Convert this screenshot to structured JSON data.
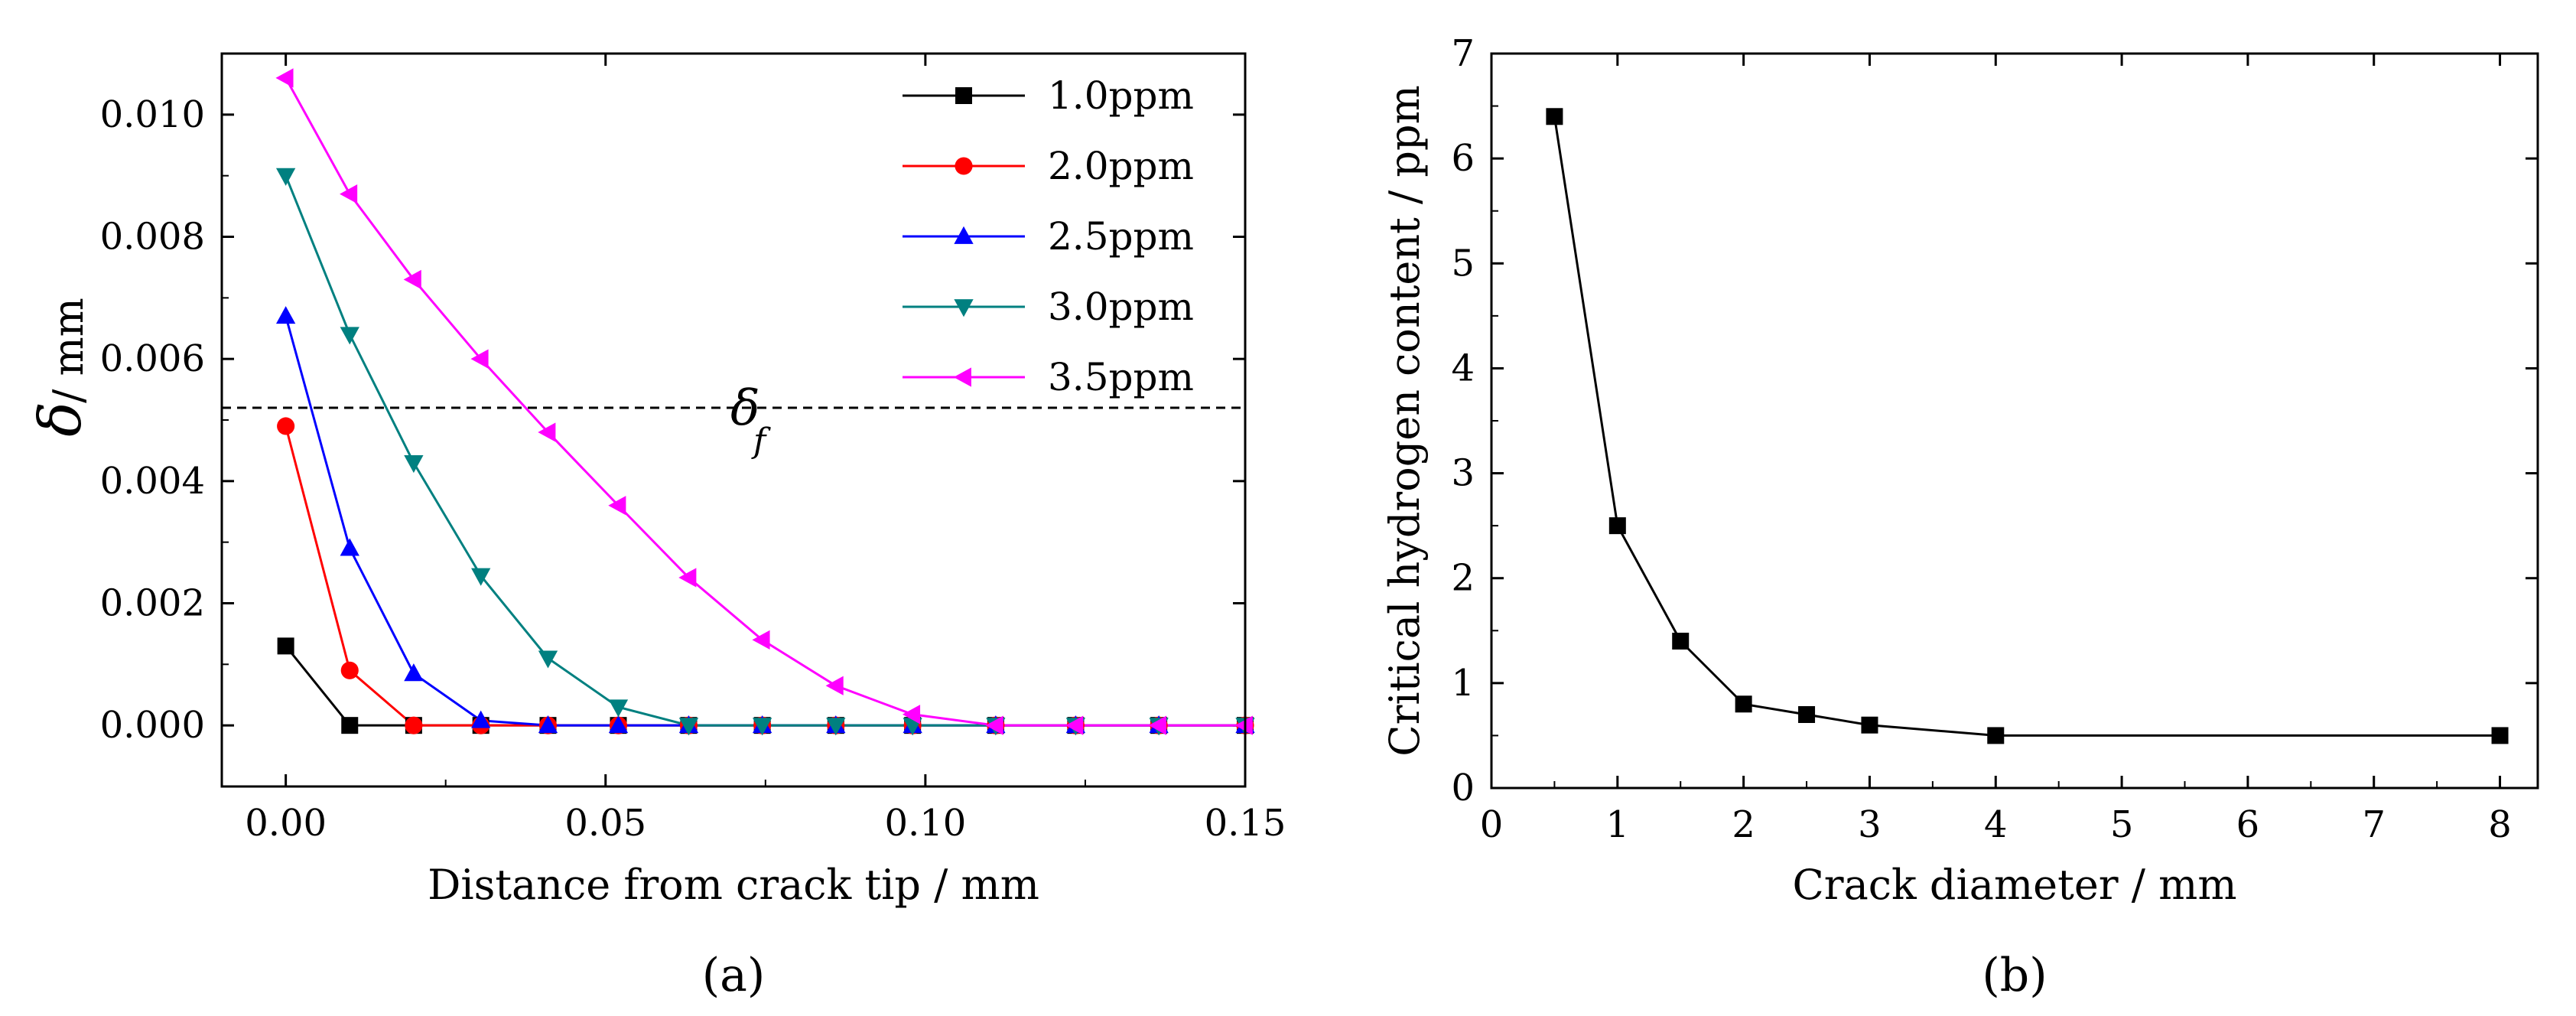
{
  "chart_data": [
    {
      "type": "line",
      "panel_label": "(a)",
      "xlabel": "Distance from crack tip / mm",
      "ylabel_symbol": "δ",
      "ylabel_unit": "/ mm",
      "xlim": [
        -0.01,
        0.15
      ],
      "ylim": [
        -0.001,
        0.011
      ],
      "xticks": [
        0.0,
        0.05,
        0.1,
        0.15
      ],
      "xtick_labels": [
        "0.00",
        "0.05",
        "0.10",
        "0.15"
      ],
      "yticks": [
        0.0,
        0.002,
        0.004,
        0.006,
        0.008,
        0.01
      ],
      "ytick_labels": [
        "0.000",
        "0.002",
        "0.004",
        "0.006",
        "0.008",
        "0.010"
      ],
      "x": [
        0.0,
        0.01,
        0.02,
        0.0305,
        0.041,
        0.052,
        0.063,
        0.0745,
        0.086,
        0.098,
        0.111,
        0.1235,
        0.1365,
        0.15
      ],
      "reference_line": {
        "label_symbol": "δ",
        "label_subscript": "f",
        "y": 0.0052
      },
      "series": [
        {
          "name": "1.0ppm",
          "color": "#000000",
          "marker": "square",
          "values": [
            0.0013,
            0.0,
            0.0,
            0.0,
            0.0,
            0.0,
            0.0,
            0.0,
            0.0,
            0.0,
            0.0,
            0.0,
            0.0,
            0.0
          ]
        },
        {
          "name": "2.0ppm",
          "color": "#ff0000",
          "marker": "circle",
          "values": [
            0.0049,
            0.0009,
            0.0,
            0.0,
            0.0,
            0.0,
            0.0,
            0.0,
            0.0,
            0.0,
            0.0,
            0.0,
            0.0,
            0.0
          ]
        },
        {
          "name": "2.5ppm",
          "color": "#0000ff",
          "marker": "triangle-up",
          "values": [
            0.0067,
            0.0029,
            0.00085,
            8e-05,
            0.0,
            0.0,
            0.0,
            0.0,
            0.0,
            0.0,
            0.0,
            0.0,
            0.0,
            0.0
          ]
        },
        {
          "name": "3.0ppm",
          "color": "#008080",
          "marker": "triangle-down",
          "values": [
            0.009,
            0.0064,
            0.0043,
            0.00245,
            0.0011,
            0.0003,
            0.0,
            0.0,
            0.0,
            0.0,
            0.0,
            0.0,
            0.0,
            0.0
          ]
        },
        {
          "name": "3.5ppm",
          "color": "#ff00ff",
          "marker": "triangle-left",
          "values": [
            0.0106,
            0.0087,
            0.0073,
            0.006,
            0.0048,
            0.0036,
            0.00242,
            0.0014,
            0.00065,
            0.00018,
            0.0,
            0.0,
            0.0,
            0.0
          ]
        }
      ]
    },
    {
      "type": "line",
      "panel_label": "(b)",
      "xlabel": "Crack diameter / mm",
      "ylabel": "Critical hydrogen content / ppm",
      "xlim": [
        0,
        8.3
      ],
      "ylim": [
        0,
        7
      ],
      "xticks": [
        0,
        1,
        2,
        3,
        4,
        5,
        6,
        7,
        8
      ],
      "xtick_labels": [
        "0",
        "1",
        "2",
        "3",
        "4",
        "5",
        "6",
        "7",
        "8"
      ],
      "yticks": [
        0,
        1,
        2,
        3,
        4,
        5,
        6,
        7
      ],
      "ytick_labels": [
        "0",
        "1",
        "2",
        "3",
        "4",
        "5",
        "6",
        "7"
      ],
      "series": [
        {
          "name": "critical-hydrogen",
          "color": "#000000",
          "marker": "square",
          "x": [
            0.5,
            1,
            1.5,
            2,
            2.5,
            3,
            4,
            8
          ],
          "values": [
            6.4,
            2.5,
            1.4,
            0.8,
            0.7,
            0.6,
            0.5,
            0.5
          ]
        }
      ]
    }
  ]
}
